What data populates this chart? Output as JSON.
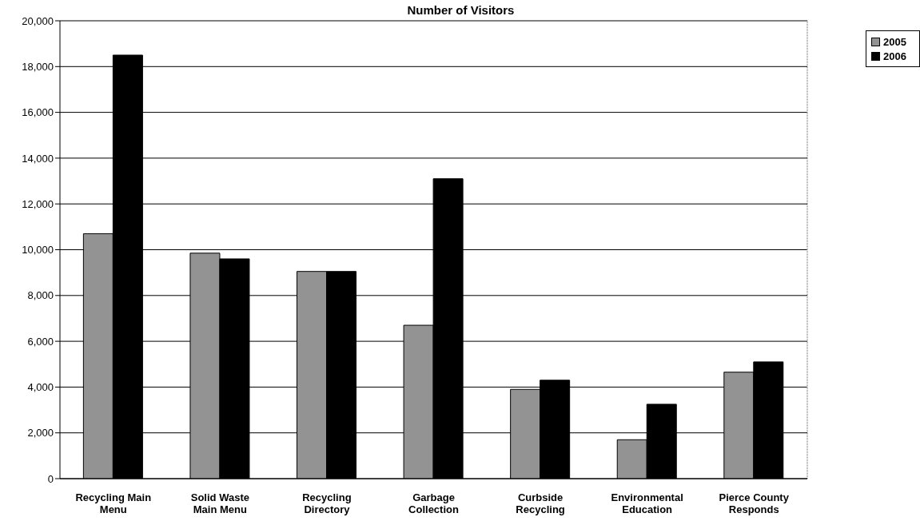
{
  "chart_data": {
    "type": "bar",
    "title": "Number of Visitors",
    "categories": [
      "Recycling Main Menu",
      "Solid Waste Main Menu",
      "Recycling Directory",
      "Garbage Collection",
      "Curbside Recycling",
      "Environmental Education",
      "Pierce County Responds"
    ],
    "series": [
      {
        "name": "2005",
        "color": "#939393",
        "values": [
          10700,
          9850,
          9050,
          6700,
          3900,
          1700,
          4650
        ]
      },
      {
        "name": "2006",
        "color": "#000000",
        "values": [
          18500,
          9600,
          9050,
          13100,
          4300,
          3250,
          5100
        ]
      }
    ],
    "ylim": [
      0,
      20000
    ],
    "yticks": [
      0,
      {
        "value": 2000,
        "label": "2,000"
      },
      {
        "value": 4000,
        "label": "4,000"
      },
      {
        "value": 6000,
        "label": "6,000"
      },
      {
        "value": 8000,
        "label": "8,000"
      },
      {
        "value": 10000,
        "label": "10,000"
      },
      {
        "value": 12000,
        "label": "12,000"
      },
      {
        "value": 14000,
        "label": "14,000"
      },
      {
        "value": 16000,
        "label": "16,000"
      },
      {
        "value": 18000,
        "label": "18,000"
      },
      {
        "value": 20000,
        "label": "20,000"
      }
    ],
    "grid": "y",
    "legend": "top right"
  }
}
